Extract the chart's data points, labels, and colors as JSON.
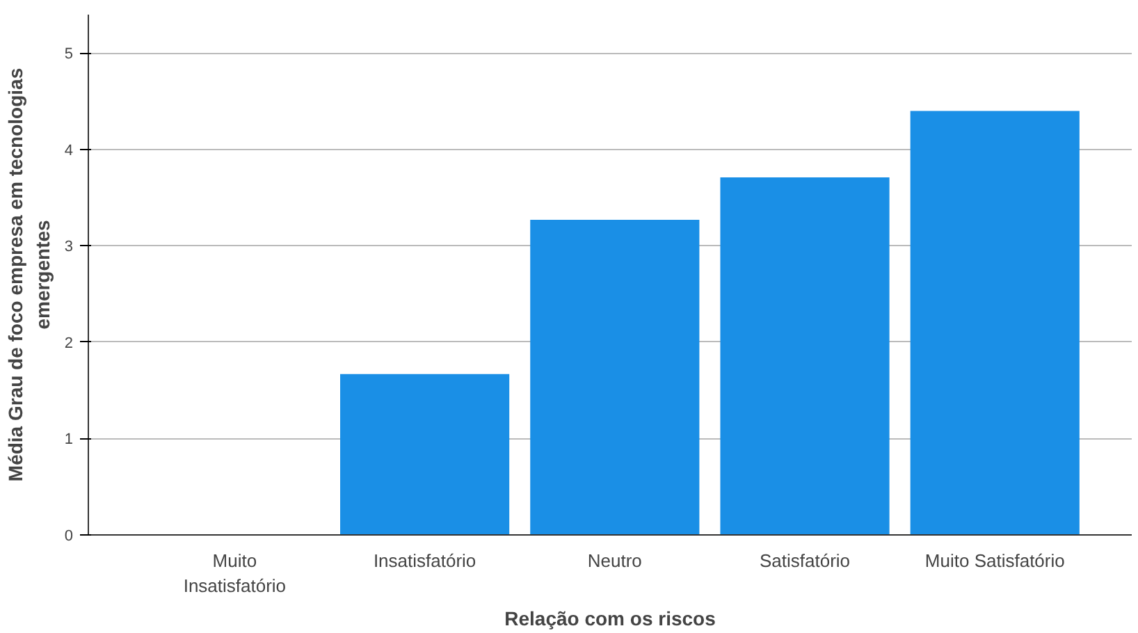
{
  "chart_data": {
    "type": "bar",
    "xlabel": "Relação com os riscos",
    "ylabel": "Média Grau de foco empresa em tecnologias emergentes",
    "categories": [
      "Muito Insatisfatório",
      "Insatisfatório",
      "Neutro",
      "Satisfatório",
      "Muito Satisfatório"
    ],
    "values": [
      0,
      1.67,
      3.27,
      3.71,
      4.4
    ],
    "color": "#1a8fe6",
    "ylim": [
      0,
      5.4
    ],
    "yticks": [
      0,
      1,
      2,
      3,
      4,
      5
    ],
    "grid": "y"
  }
}
